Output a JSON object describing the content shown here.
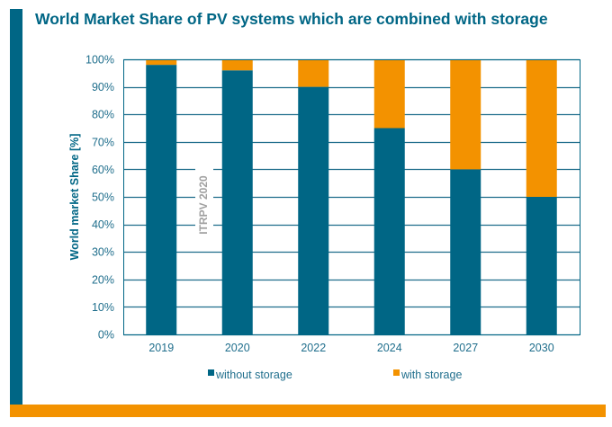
{
  "title": "World Market Share of PV systems which are combined with storage",
  "colors": {
    "primary": "#006685",
    "accent": "#f39200",
    "grid": "#006685"
  },
  "chart_data": {
    "type": "bar",
    "stacked": true,
    "title": "World Market Share of PV systems which are combined with storage",
    "xlabel": "",
    "ylabel": "World market Share [%]",
    "ylim": [
      0,
      100
    ],
    "yticks": [
      "0%",
      "10%",
      "20%",
      "30%",
      "40%",
      "50%",
      "60%",
      "70%",
      "80%",
      "90%",
      "100%"
    ],
    "categories": [
      "2019",
      "2020",
      "2022",
      "2024",
      "2027",
      "2030"
    ],
    "series": [
      {
        "name": "without storage",
        "color": "#006685",
        "values": [
          98,
          96,
          90,
          75,
          60,
          50
        ]
      },
      {
        "name": "with storage",
        "color": "#f39200",
        "values": [
          2,
          4,
          10,
          25,
          40,
          50
        ]
      }
    ],
    "grid": true,
    "legend": "bottom",
    "annotation": "ITRPV 2020"
  }
}
